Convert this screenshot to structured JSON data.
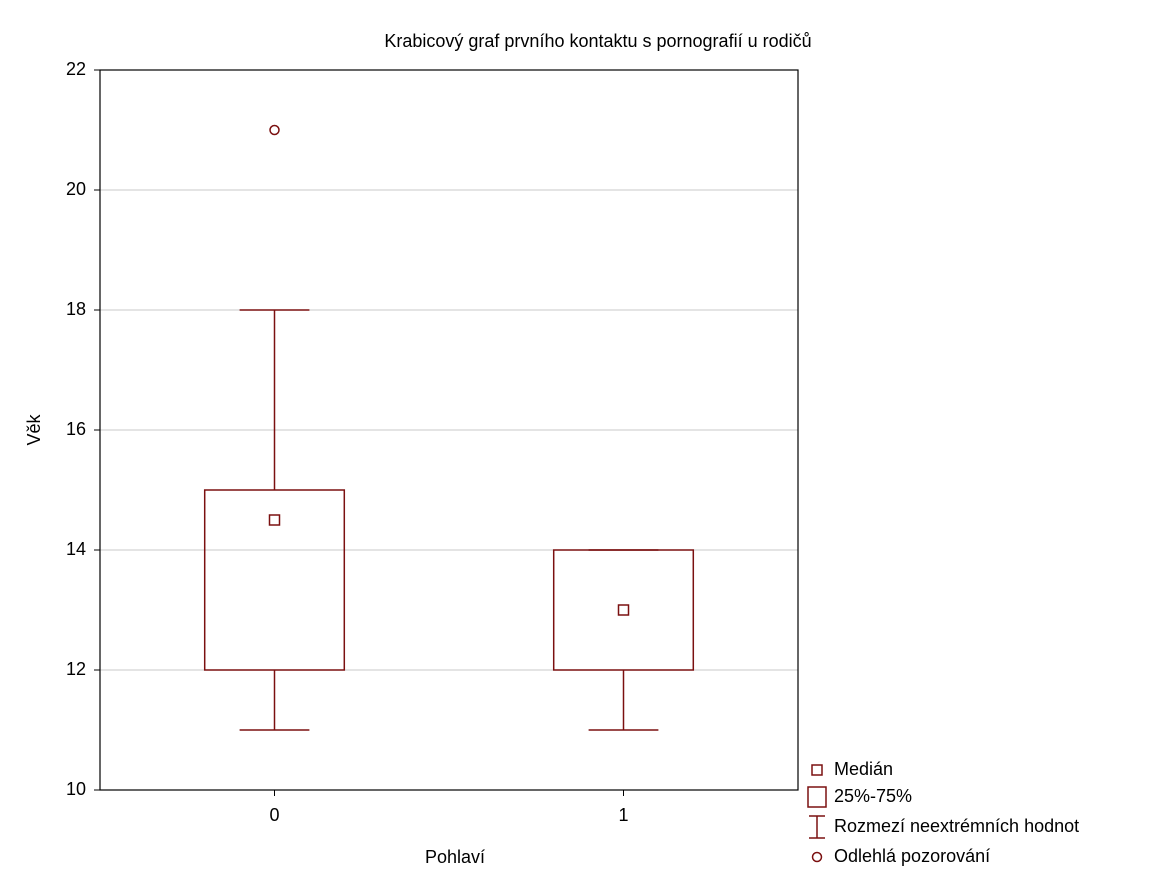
{
  "chart_data": {
    "type": "box",
    "title": "Krabicový graf prvního kontaktu s pornografií u rodičů",
    "x_label": "Pohlaví",
    "y_label": "Věk",
    "categories": [
      "0",
      "1"
    ],
    "boxes": [
      {
        "min": 11,
        "q1": 12,
        "median": 14.5,
        "q3": 15,
        "max": 18,
        "outliers": [
          21
        ]
      },
      {
        "min": 11,
        "q1": 12,
        "median": 13,
        "q3": 14,
        "max": 14,
        "outliers": []
      }
    ],
    "color": "#7b1010",
    "ylim": [
      10,
      22
    ],
    "yticks": [
      10,
      12,
      14,
      16,
      18,
      20,
      22
    ],
    "grid": true,
    "legend": [
      "Medián",
      "25%-75%",
      "Rozmezí neextrémních hodnot",
      "Odlehlá pozorování"
    ]
  }
}
